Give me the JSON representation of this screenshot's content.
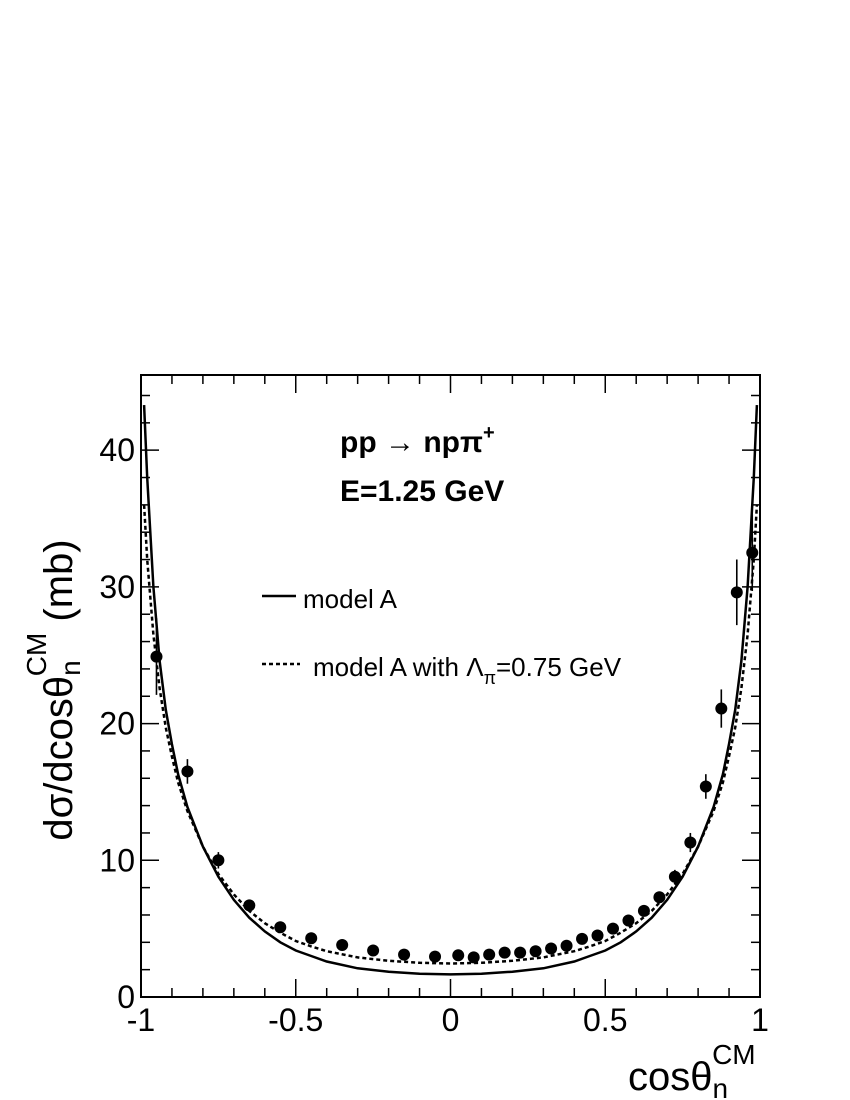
{
  "chart_data": {
    "type": "scatter",
    "xlabel": {
      "main": "cosθ",
      "sub": "n",
      "sup": "CM"
    },
    "ylabel": {
      "pre": "dσ/dcosθ",
      "sub": "n",
      "sup": "CM",
      "post": " (mb)"
    },
    "xlim": [
      -1,
      1
    ],
    "ylim": [
      0,
      45.5
    ],
    "grid": false,
    "x_ticks": [
      -1,
      -0.5,
      0,
      0.5,
      1
    ],
    "x_tick_labels": [
      "-1",
      "-0.5",
      "0",
      "0.5",
      "1"
    ],
    "y_ticks": [
      0,
      10,
      20,
      30,
      40
    ],
    "y_tick_labels": [
      "0",
      "10",
      "20",
      "30",
      "40"
    ],
    "annotations": [
      {
        "pre": "pp ",
        "arrow": "→",
        "post": " npπ",
        "sup": "+"
      },
      {
        "pre": "E=1.25 GeV"
      }
    ],
    "legend": {
      "placement": "middle-left",
      "entries": [
        {
          "style": "solid",
          "pre": "model A"
        },
        {
          "style": "dashed",
          "pre": "model A with ",
          "symbol": "Λ",
          "sub": "π",
          "post": "=0.75 GeV"
        }
      ]
    },
    "series": [
      {
        "style": "markers",
        "points": [
          {
            "x": -0.95,
            "y": 24.9,
            "err": 2.8
          },
          {
            "x": -0.85,
            "y": 16.5,
            "err": 0.9
          },
          {
            "x": -0.75,
            "y": 10.0,
            "err": 0.6
          },
          {
            "x": -0.65,
            "y": 6.7,
            "err": 0.4
          },
          {
            "x": -0.55,
            "y": 5.1,
            "err": 0.3
          },
          {
            "x": -0.45,
            "y": 4.3,
            "err": 0.25
          },
          {
            "x": -0.35,
            "y": 3.8,
            "err": 0.2
          },
          {
            "x": -0.25,
            "y": 3.4,
            "err": 0.2
          },
          {
            "x": -0.15,
            "y": 3.1,
            "err": 0.2
          },
          {
            "x": -0.05,
            "y": 2.95,
            "err": 0.2
          },
          {
            "x": 0.025,
            "y": 3.05,
            "err": 0.2
          },
          {
            "x": 0.075,
            "y": 2.9,
            "err": 0.2
          },
          {
            "x": 0.125,
            "y": 3.1,
            "err": 0.2
          },
          {
            "x": 0.175,
            "y": 3.25,
            "err": 0.2
          },
          {
            "x": 0.225,
            "y": 3.25,
            "err": 0.2
          },
          {
            "x": 0.275,
            "y": 3.35,
            "err": 0.2
          },
          {
            "x": 0.325,
            "y": 3.55,
            "err": 0.2
          },
          {
            "x": 0.375,
            "y": 3.75,
            "err": 0.2
          },
          {
            "x": 0.425,
            "y": 4.25,
            "err": 0.2
          },
          {
            "x": 0.475,
            "y": 4.5,
            "err": 0.2
          },
          {
            "x": 0.525,
            "y": 5.0,
            "err": 0.25
          },
          {
            "x": 0.575,
            "y": 5.6,
            "err": 0.3
          },
          {
            "x": 0.625,
            "y": 6.3,
            "err": 0.35
          },
          {
            "x": 0.675,
            "y": 7.3,
            "err": 0.4
          },
          {
            "x": 0.725,
            "y": 8.8,
            "err": 0.5
          },
          {
            "x": 0.775,
            "y": 11.3,
            "err": 0.7
          },
          {
            "x": 0.825,
            "y": 15.4,
            "err": 0.9
          },
          {
            "x": 0.875,
            "y": 21.1,
            "err": 1.4
          },
          {
            "x": 0.925,
            "y": 29.6,
            "err": 2.4
          },
          {
            "x": 0.975,
            "y": 32.5,
            "err": 2.8
          }
        ]
      },
      {
        "style": "solid",
        "x": [
          -0.99,
          -0.98,
          -0.96,
          -0.94,
          -0.92,
          -0.9,
          -0.88,
          -0.85,
          -0.8,
          -0.75,
          -0.7,
          -0.65,
          -0.6,
          -0.55,
          -0.5,
          -0.45,
          -0.4,
          -0.3,
          -0.2,
          -0.1,
          0.0,
          0.1,
          0.2,
          0.3,
          0.4,
          0.45,
          0.5,
          0.55,
          0.6,
          0.65,
          0.7,
          0.75,
          0.8,
          0.85,
          0.88,
          0.9,
          0.92,
          0.94,
          0.96,
          0.98,
          0.99
        ],
        "y": [
          43.3,
          38.0,
          30.0,
          24.6,
          21.0,
          18.5,
          16.3,
          13.9,
          11.0,
          8.8,
          7.1,
          5.8,
          4.8,
          4.0,
          3.4,
          3.0,
          2.6,
          2.1,
          1.85,
          1.7,
          1.65,
          1.7,
          1.85,
          2.1,
          2.6,
          3.0,
          3.4,
          4.0,
          4.8,
          5.8,
          7.1,
          8.8,
          11.0,
          13.9,
          16.3,
          18.5,
          21.0,
          24.6,
          30.0,
          38.0,
          43.3
        ]
      },
      {
        "style": "dashed",
        "x": [
          -0.99,
          -0.98,
          -0.96,
          -0.94,
          -0.92,
          -0.9,
          -0.88,
          -0.85,
          -0.8,
          -0.75,
          -0.7,
          -0.65,
          -0.6,
          -0.55,
          -0.5,
          -0.45,
          -0.4,
          -0.3,
          -0.2,
          -0.1,
          0.0,
          0.1,
          0.2,
          0.3,
          0.4,
          0.45,
          0.5,
          0.55,
          0.6,
          0.65,
          0.7,
          0.75,
          0.8,
          0.85,
          0.88,
          0.9,
          0.92,
          0.94,
          0.96,
          0.98,
          0.99
        ],
        "y": [
          36.0,
          32.0,
          26.5,
          22.6,
          19.7,
          17.6,
          15.7,
          13.6,
          11.0,
          9.0,
          7.5,
          6.3,
          5.4,
          4.7,
          4.1,
          3.7,
          3.35,
          2.9,
          2.65,
          2.5,
          2.45,
          2.5,
          2.65,
          2.9,
          3.35,
          3.7,
          4.1,
          4.7,
          5.4,
          6.3,
          7.5,
          9.0,
          11.0,
          13.6,
          15.7,
          17.6,
          19.7,
          22.6,
          26.5,
          32.0,
          36.0
        ]
      }
    ]
  }
}
